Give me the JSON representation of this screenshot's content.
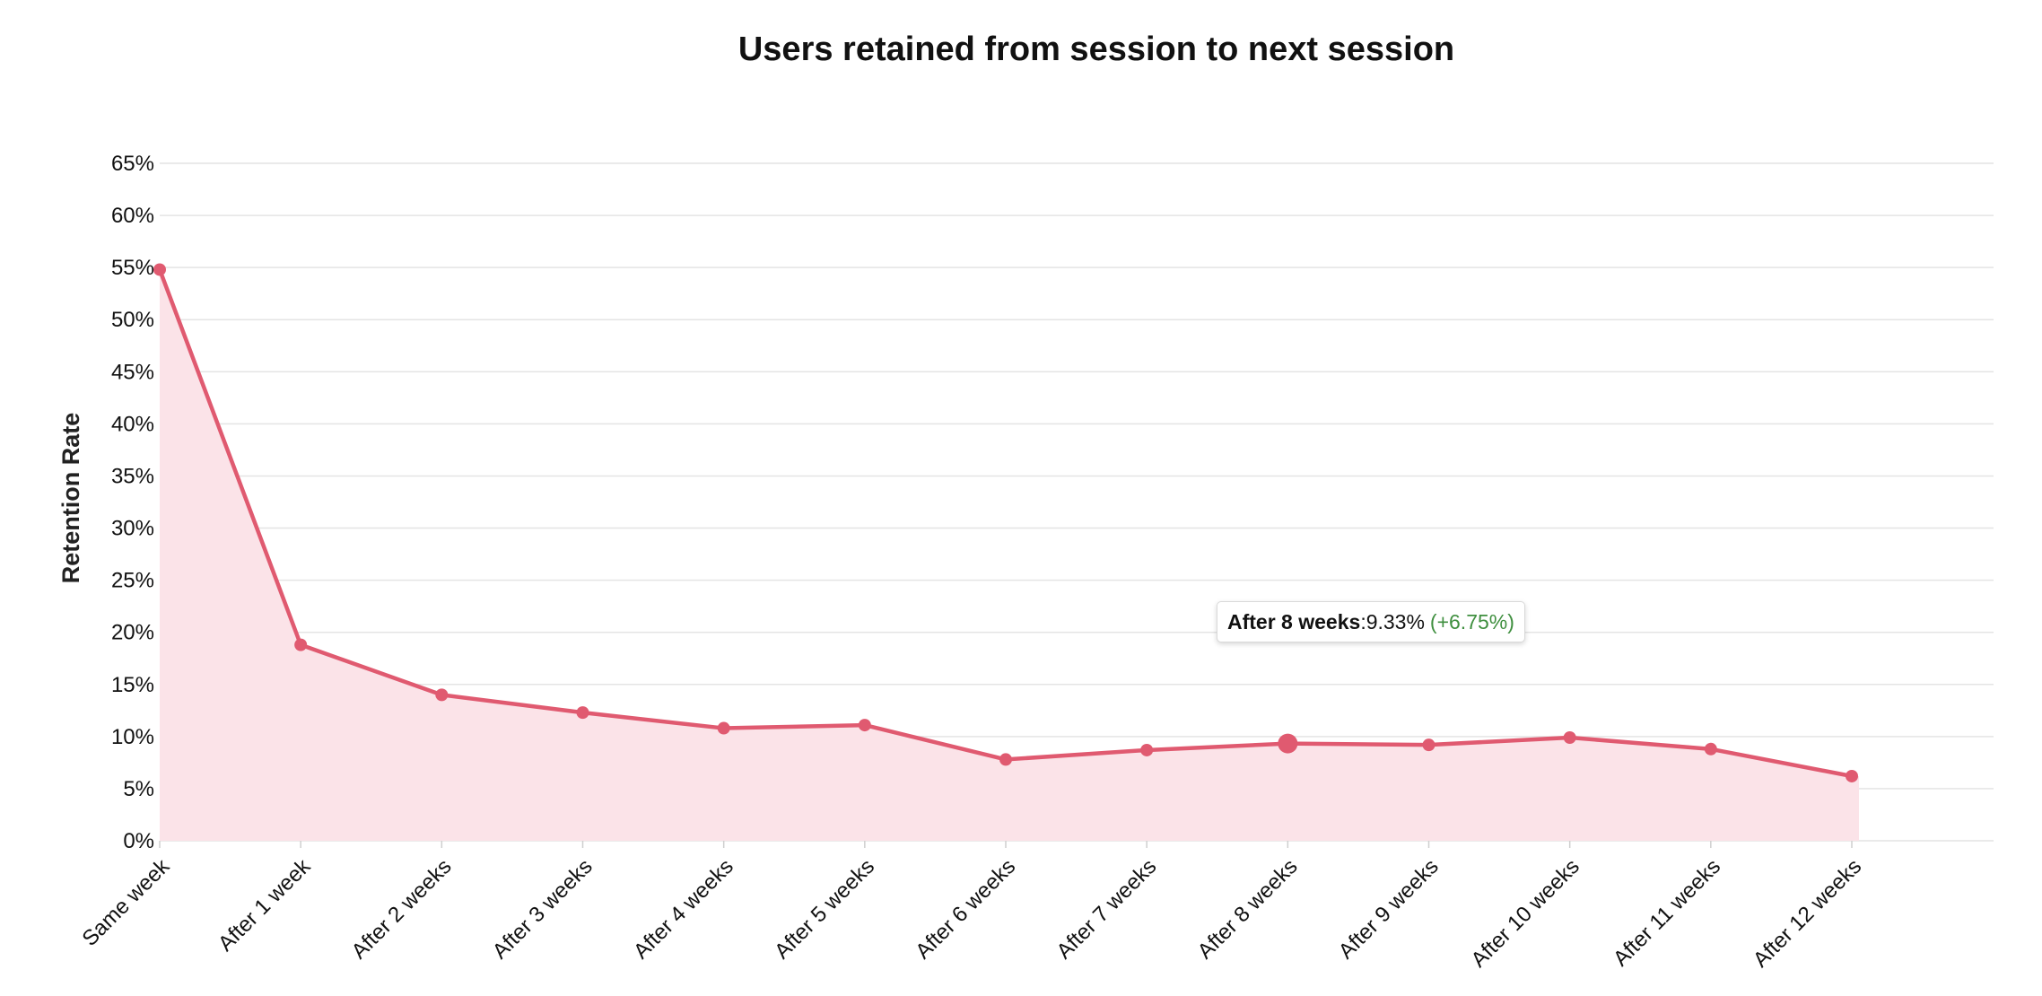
{
  "colors": {
    "line": "#e05a70",
    "area": "#fbe3e8",
    "grid": "#e4e4e4",
    "change_positive": "#3f8f3f"
  },
  "chart_data": {
    "type": "area",
    "title": "Users retained from session to next session",
    "xlabel": "",
    "ylabel": "Retention Rate",
    "categories": [
      "Same week",
      "After 1 week",
      "After 2 weeks",
      "After 3 weeks",
      "After 4 weeks",
      "After 5 weeks",
      "After 6 weeks",
      "After 7 weeks",
      "After 8 weeks",
      "After 9 weeks",
      "After 10 weeks",
      "After 11 weeks",
      "After 12 weeks"
    ],
    "values": [
      54.8,
      18.8,
      14.0,
      12.3,
      10.8,
      11.1,
      7.8,
      8.7,
      9.33,
      9.2,
      9.9,
      8.8,
      6.2
    ],
    "unit": "%",
    "ylim": [
      0,
      65
    ],
    "yticks": [
      0,
      5,
      10,
      15,
      20,
      25,
      30,
      35,
      40,
      45,
      50,
      55,
      60,
      65
    ],
    "ytick_labels": [
      "0%",
      "5%",
      "10%",
      "15%",
      "20%",
      "25%",
      "30%",
      "35%",
      "40%",
      "45%",
      "50%",
      "55%",
      "60%",
      "65%"
    ],
    "grid": true,
    "legend": "none",
    "highlighted_index": 8,
    "tooltip": {
      "label": "After 8 weeks",
      "separator": ": ",
      "value": "9.33%",
      "change": "(+6.75%)"
    }
  }
}
